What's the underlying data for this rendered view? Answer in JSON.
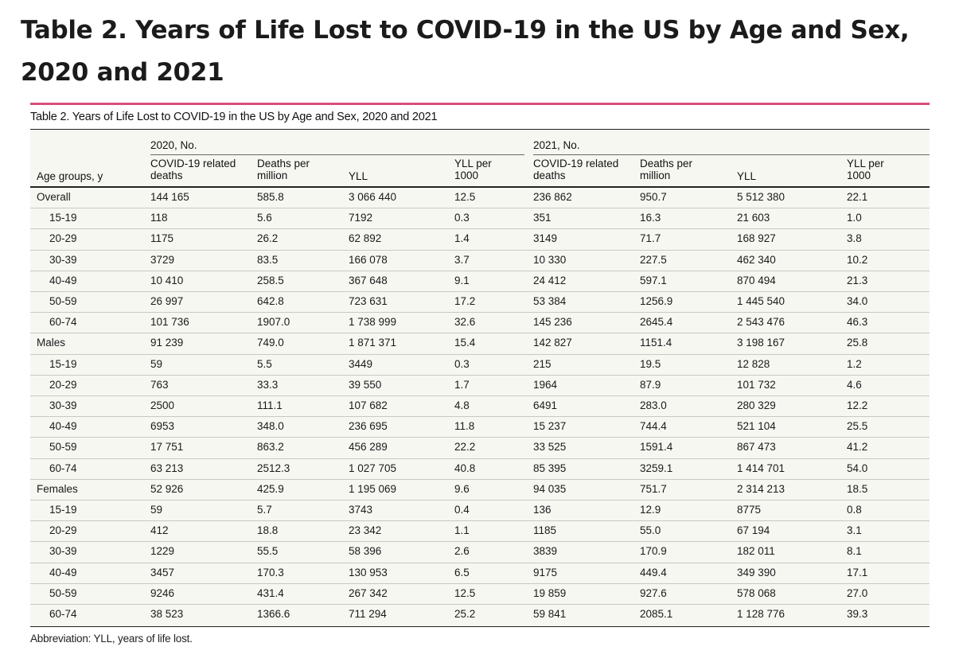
{
  "page_title": "Table 2.  Years of Life Lost to COVID-19 in the US by Age and Sex, 2020 and 2021",
  "caption": "Table 2. Years of Life Lost to COVID-19 in the US by Age and Sex, 2020 and 2021",
  "year_2020": "2020, No.",
  "year_2021": "2021, No.",
  "headers": {
    "age": "Age groups, y",
    "deaths": "COVID-19 related deaths",
    "per_million": "Deaths per million",
    "yll": "YLL",
    "yll_per_1000": "YLL per 1000"
  },
  "rows": [
    {
      "group": "Overall",
      "sub": false,
      "v": [
        "144 165",
        "585.8",
        "3 066 440",
        "12.5",
        "236 862",
        "950.7",
        "5 512 380",
        "22.1"
      ]
    },
    {
      "group": "15-19",
      "sub": true,
      "v": [
        "118",
        "5.6",
        "7192",
        "0.3",
        "351",
        "16.3",
        "21 603",
        "1.0"
      ]
    },
    {
      "group": "20-29",
      "sub": true,
      "v": [
        "1175",
        "26.2",
        "62 892",
        "1.4",
        "3149",
        "71.7",
        "168 927",
        "3.8"
      ]
    },
    {
      "group": "30-39",
      "sub": true,
      "v": [
        "3729",
        "83.5",
        "166 078",
        "3.7",
        "10 330",
        "227.5",
        "462 340",
        "10.2"
      ]
    },
    {
      "group": "40-49",
      "sub": true,
      "v": [
        "10 410",
        "258.5",
        "367 648",
        "9.1",
        "24 412",
        "597.1",
        "870 494",
        "21.3"
      ]
    },
    {
      "group": "50-59",
      "sub": true,
      "v": [
        "26 997",
        "642.8",
        "723 631",
        "17.2",
        "53 384",
        "1256.9",
        "1 445 540",
        "34.0"
      ]
    },
    {
      "group": "60-74",
      "sub": true,
      "v": [
        "101 736",
        "1907.0",
        "1 738 999",
        "32.6",
        "145 236",
        "2645.4",
        "2 543 476",
        "46.3"
      ]
    },
    {
      "group": "Males",
      "sub": false,
      "v": [
        "91 239",
        "749.0",
        "1 871 371",
        "15.4",
        "142 827",
        "1151.4",
        "3 198 167",
        "25.8"
      ]
    },
    {
      "group": "15-19",
      "sub": true,
      "v": [
        "59",
        "5.5",
        "3449",
        "0.3",
        "215",
        "19.5",
        "12 828",
        "1.2"
      ]
    },
    {
      "group": "20-29",
      "sub": true,
      "v": [
        "763",
        "33.3",
        "39 550",
        "1.7",
        "1964",
        "87.9",
        "101 732",
        "4.6"
      ]
    },
    {
      "group": "30-39",
      "sub": true,
      "v": [
        "2500",
        "111.1",
        "107 682",
        "4.8",
        "6491",
        "283.0",
        "280 329",
        "12.2"
      ]
    },
    {
      "group": "40-49",
      "sub": true,
      "v": [
        "6953",
        "348.0",
        "236 695",
        "11.8",
        "15 237",
        "744.4",
        "521 104",
        "25.5"
      ]
    },
    {
      "group": "50-59",
      "sub": true,
      "v": [
        "17 751",
        "863.2",
        "456 289",
        "22.2",
        "33 525",
        "1591.4",
        "867 473",
        "41.2"
      ]
    },
    {
      "group": "60-74",
      "sub": true,
      "v": [
        "63 213",
        "2512.3",
        "1 027 705",
        "40.8",
        "85 395",
        "3259.1",
        "1 414 701",
        "54.0"
      ]
    },
    {
      "group": "Females",
      "sub": false,
      "v": [
        "52 926",
        "425.9",
        "1 195 069",
        "9.6",
        "94 035",
        "751.7",
        "2 314 213",
        "18.5"
      ]
    },
    {
      "group": "15-19",
      "sub": true,
      "v": [
        "59",
        "5.7",
        "3743",
        "0.4",
        "136",
        "12.9",
        "8775",
        "0.8"
      ]
    },
    {
      "group": "20-29",
      "sub": true,
      "v": [
        "412",
        "18.8",
        "23 342",
        "1.1",
        "1185",
        "55.0",
        "67 194",
        "3.1"
      ]
    },
    {
      "group": "30-39",
      "sub": true,
      "v": [
        "1229",
        "55.5",
        "58 396",
        "2.6",
        "3839",
        "170.9",
        "182 011",
        "8.1"
      ]
    },
    {
      "group": "40-49",
      "sub": true,
      "v": [
        "3457",
        "170.3",
        "130 953",
        "6.5",
        "9175",
        "449.4",
        "349 390",
        "17.1"
      ]
    },
    {
      "group": "50-59",
      "sub": true,
      "v": [
        "9246",
        "431.4",
        "267 342",
        "12.5",
        "19 859",
        "927.6",
        "578 068",
        "27.0"
      ]
    },
    {
      "group": "60-74",
      "sub": true,
      "v": [
        "38 523",
        "1366.6",
        "711 294",
        "25.2",
        "59 841",
        "2085.1",
        "1 128 776",
        "39.3"
      ]
    }
  ],
  "footnote": "Abbreviation: YLL, years of life lost.",
  "accent_color": "#d94d7d"
}
